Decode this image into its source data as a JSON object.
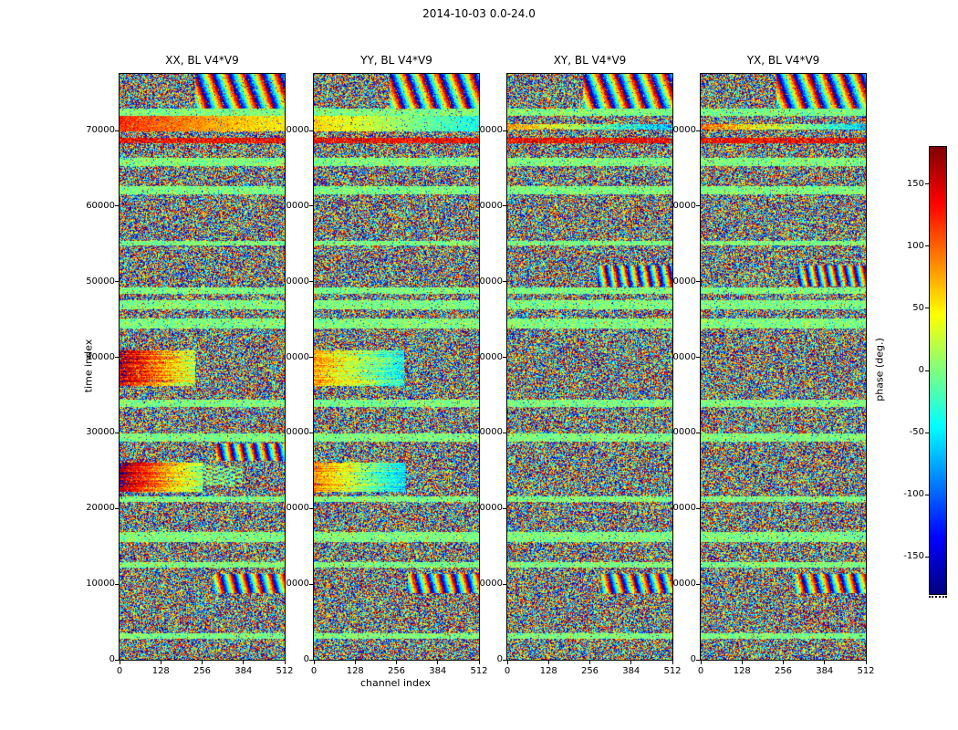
{
  "chart_data": {
    "type": "heatmap",
    "title": "2014-10-03 0.0-24.0",
    "xlabel": "channel index",
    "ylabel": "time index",
    "x_ticks": [
      0,
      128,
      256,
      384,
      512
    ],
    "y_ticks": [
      0,
      10000,
      20000,
      30000,
      40000,
      50000,
      60000,
      70000
    ],
    "x_range": [
      0,
      512
    ],
    "y_range": [
      0,
      77500
    ],
    "colormap": "jet",
    "grid": false,
    "colorbar": {
      "label": "phase (deg.)",
      "ticks": [
        150,
        100,
        50,
        0,
        -50,
        -100,
        -150
      ],
      "vmin": -180,
      "vmax": 180,
      "side": "right",
      "tick_side": "left"
    },
    "panels": [
      {
        "id": "XX",
        "title": "XX, BL V4*V9",
        "seed": 11,
        "features": [
          {
            "type": "grad",
            "t": [
              22200,
              26100
            ],
            "c": [
              0,
              258
            ],
            "p0": 172,
            "p1": 5,
            "ns": 55,
            "streak": true
          },
          {
            "type": "checker",
            "t": [
              23000,
              25600
            ],
            "c": [
              258,
              382
            ],
            "cw": 18,
            "th": 270
          },
          {
            "type": "grad",
            "t": [
              36200,
              40900
            ],
            "c": [
              0,
              235
            ],
            "p0": 160,
            "p1": 20,
            "ns": 80,
            "streak": true
          },
          {
            "type": "grad",
            "t": [
              69900,
              71900
            ],
            "c": [
              0,
              512
            ],
            "p0": 120,
            "p1": 45,
            "ns": 45
          },
          {
            "type": "fringe",
            "t": [
              26300,
              28600
            ],
            "c": [
              300,
              512
            ],
            "kc": 10,
            "kt": 0.05,
            "ns": 60
          }
        ]
      },
      {
        "id": "YY",
        "title": "YY, BL V4*V9",
        "seed": 22,
        "features": [
          {
            "type": "grad",
            "t": [
              22200,
              26100
            ],
            "c": [
              0,
              285
            ],
            "p0": 95,
            "p1": -55,
            "ns": 55,
            "streak": true
          },
          {
            "type": "grad",
            "t": [
              36200,
              40900
            ],
            "c": [
              0,
              280
            ],
            "p0": 75,
            "p1": -45,
            "ns": 70,
            "streak": true
          },
          {
            "type": "grad",
            "t": [
              69900,
              71900
            ],
            "c": [
              0,
              512
            ],
            "p0": 60,
            "p1": -40,
            "ns": 45
          }
        ]
      },
      {
        "id": "XY",
        "title": "XY, BL V4*V9",
        "seed": 33,
        "features": [
          {
            "type": "fringe",
            "t": [
              49400,
              52200
            ],
            "c": [
              280,
              512
            ],
            "kc": 11,
            "kt": 0.05,
            "ns": 70
          },
          {
            "type": "grad",
            "t": [
              70100,
              70900
            ],
            "c": [
              0,
              512
            ],
            "p0": 80,
            "p1": -80,
            "ns": 90
          }
        ]
      },
      {
        "id": "YX",
        "title": "YX, BL V4*V9",
        "seed": 44,
        "features": [
          {
            "type": "fringe",
            "t": [
              49400,
              52200
            ],
            "c": [
              300,
              512
            ],
            "kc": 12,
            "kt": 0.06,
            "ns": 60
          },
          {
            "type": "grad",
            "t": [
              70100,
              70900
            ],
            "c": [
              0,
              512
            ],
            "p0": 100,
            "p1": -60,
            "ns": 80
          }
        ]
      }
    ],
    "global_features": [
      {
        "type": "flat",
        "t": [
          2800,
          3500
        ],
        "c": [
          0,
          512
        ],
        "p0": 0,
        "ns": 60
      },
      {
        "type": "flat",
        "t": [
          12200,
          12900
        ],
        "c": [
          0,
          512
        ],
        "p0": 0,
        "ns": 60
      },
      {
        "type": "flat",
        "t": [
          15600,
          16900
        ],
        "c": [
          0,
          512
        ],
        "p0": 0,
        "ns": 60
      },
      {
        "type": "flat",
        "t": [
          20900,
          21600
        ],
        "c": [
          0,
          512
        ],
        "p0": 0,
        "ns": 60
      },
      {
        "type": "flat",
        "t": [
          28800,
          29900
        ],
        "c": [
          0,
          512
        ],
        "p0": 0,
        "ns": 60
      },
      {
        "type": "flat",
        "t": [
          33400,
          34400
        ],
        "c": [
          0,
          512
        ],
        "p0": 0,
        "ns": 60
      },
      {
        "type": "flat",
        "t": [
          43800,
          45200
        ],
        "c": [
          0,
          512
        ],
        "p0": 0,
        "ns": 60
      },
      {
        "type": "flat",
        "t": [
          46300,
          47600
        ],
        "c": [
          0,
          512
        ],
        "p0": 0,
        "ns": 60
      },
      {
        "type": "flat",
        "t": [
          48400,
          49200
        ],
        "c": [
          0,
          512
        ],
        "p0": 0,
        "ns": 60
      },
      {
        "type": "flat",
        "t": [
          54800,
          55400
        ],
        "c": [
          0,
          512
        ],
        "p0": 0,
        "ns": 60
      },
      {
        "type": "flat",
        "t": [
          61600,
          62600
        ],
        "c": [
          0,
          512
        ],
        "p0": 0,
        "ns": 60
      },
      {
        "type": "flat",
        "t": [
          65300,
          66400
        ],
        "c": [
          0,
          512
        ],
        "p0": 0,
        "ns": 60
      },
      {
        "type": "flat",
        "t": [
          72000,
          72900
        ],
        "c": [
          0,
          512
        ],
        "p0": 0,
        "ns": 60
      },
      {
        "type": "flat",
        "t": [
          68300,
          69000
        ],
        "c": [
          0,
          512
        ],
        "p0": 135,
        "ns": 70
      },
      {
        "type": "fringe",
        "t": [
          8800,
          11300
        ],
        "c": [
          290,
          512
        ],
        "kc": 9,
        "kt": 0.055,
        "ns": 50
      },
      {
        "type": "fringe",
        "t": [
          72900,
          77500
        ],
        "c": [
          235,
          512
        ],
        "kc": 7,
        "kt": 0.06,
        "ns": 60
      }
    ]
  }
}
